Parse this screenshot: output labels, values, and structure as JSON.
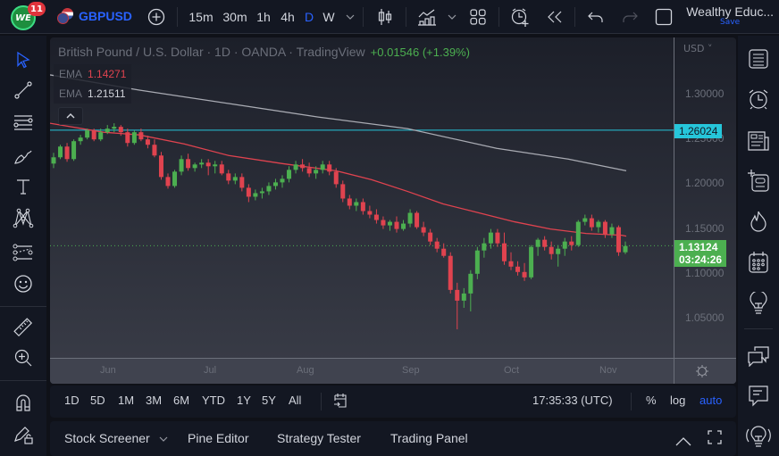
{
  "topbar": {
    "avatar_text": "WE",
    "notification_count": "11",
    "symbol": "GBPUSD",
    "intervals": [
      "15m",
      "30m",
      "1h",
      "4h",
      "D",
      "W"
    ],
    "active_interval": "D",
    "account_name": "Wealthy Educ...",
    "save_label": "Save"
  },
  "chart": {
    "title": "British Pound / U.S. Dollar · 1D · OANDA · TradingView",
    "change": "+0.01546 (+1.39%)",
    "indicators": [
      {
        "label": "EMA",
        "value": "1.14271",
        "color": "#e0434f"
      },
      {
        "label": "EMA",
        "value": "1.21511",
        "color": "#d1d4dc"
      }
    ],
    "currency": "USD",
    "price_labels": [
      "1.30000",
      "1.25000",
      "1.20000",
      "1.15000",
      "1.10000",
      "1.05000"
    ],
    "horizontal_line": {
      "value": "1.26024",
      "color": "#26c6da"
    },
    "last_price": {
      "value": "1.13124",
      "countdown": "03:24:26",
      "color": "#4caf50"
    },
    "time_labels": [
      "Jun",
      "Jul",
      "Aug",
      "Sep",
      "Oct",
      "Nov"
    ]
  },
  "chart_data": {
    "type": "candlestick",
    "title": "British Pound / U.S. Dollar · 1D · OANDA · TradingView",
    "ylabel": "USD",
    "ylim": [
      1.02,
      1.33
    ],
    "x_ticks": [
      "Jun",
      "Jul",
      "Aug",
      "Sep",
      "Oct",
      "Nov"
    ],
    "y_ticks": [
      1.05,
      1.1,
      1.15,
      1.2,
      1.25,
      1.3
    ],
    "series": [
      {
        "name": "EMA (red)",
        "value": 1.14271,
        "points": [
          [
            0,
            1.268
          ],
          [
            60,
            1.258
          ],
          [
            100,
            1.255
          ],
          [
            150,
            1.245
          ],
          [
            200,
            1.232
          ],
          [
            260,
            1.223
          ],
          [
            320,
            1.215
          ],
          [
            360,
            1.205
          ],
          [
            400,
            1.192
          ],
          [
            440,
            1.178
          ],
          [
            480,
            1.168
          ],
          [
            520,
            1.158
          ],
          [
            560,
            1.15
          ],
          [
            600,
            1.145
          ],
          [
            640,
            1.143
          ],
          [
            645,
            1.142
          ]
        ]
      },
      {
        "name": "EMA (white)",
        "value": 1.21511,
        "points": [
          [
            0,
            1.322
          ],
          [
            100,
            1.305
          ],
          [
            200,
            1.29
          ],
          [
            300,
            1.275
          ],
          [
            400,
            1.262
          ],
          [
            500,
            1.24
          ],
          [
            580,
            1.228
          ],
          [
            645,
            1.215
          ]
        ]
      }
    ],
    "horizontal_line": 1.26024,
    "last_price": 1.13124,
    "candles": [
      [
        1.223,
        1.235,
        1.218,
        1.23
      ],
      [
        1.23,
        1.244,
        1.228,
        1.242
      ],
      [
        1.242,
        1.246,
        1.225,
        1.228
      ],
      [
        1.228,
        1.25,
        1.226,
        1.248
      ],
      [
        1.248,
        1.255,
        1.244,
        1.252
      ],
      [
        1.252,
        1.262,
        1.25,
        1.26
      ],
      [
        1.26,
        1.262,
        1.248,
        1.25
      ],
      [
        1.25,
        1.262,
        1.248,
        1.258
      ],
      [
        1.258,
        1.266,
        1.256,
        1.262
      ],
      [
        1.262,
        1.268,
        1.258,
        1.264
      ],
      [
        1.264,
        1.266,
        1.254,
        1.258
      ],
      [
        1.258,
        1.262,
        1.242,
        1.246
      ],
      [
        1.246,
        1.26,
        1.244,
        1.258
      ],
      [
        1.258,
        1.262,
        1.248,
        1.25
      ],
      [
        1.25,
        1.254,
        1.24,
        1.244
      ],
      [
        1.244,
        1.25,
        1.23,
        1.232
      ],
      [
        1.232,
        1.236,
        1.205,
        1.208
      ],
      [
        1.208,
        1.212,
        1.195,
        1.198
      ],
      [
        1.198,
        1.216,
        1.196,
        1.214
      ],
      [
        1.214,
        1.232,
        1.21,
        1.228
      ],
      [
        1.228,
        1.234,
        1.215,
        1.218
      ],
      [
        1.218,
        1.224,
        1.214,
        1.222
      ],
      [
        1.222,
        1.228,
        1.218,
        1.224
      ],
      [
        1.224,
        1.228,
        1.21,
        1.22
      ],
      [
        1.22,
        1.226,
        1.212,
        1.222
      ],
      [
        1.222,
        1.226,
        1.21,
        1.212
      ],
      [
        1.212,
        1.216,
        1.2,
        1.204
      ],
      [
        1.204,
        1.212,
        1.2,
        1.208
      ],
      [
        1.208,
        1.212,
        1.192,
        1.196
      ],
      [
        1.196,
        1.2,
        1.18,
        1.186
      ],
      [
        1.186,
        1.194,
        1.182,
        1.19
      ],
      [
        1.19,
        1.196,
        1.184,
        1.192
      ],
      [
        1.192,
        1.202,
        1.188,
        1.198
      ],
      [
        1.198,
        1.206,
        1.194,
        1.202
      ],
      [
        1.202,
        1.21,
        1.196,
        1.206
      ],
      [
        1.206,
        1.22,
        1.202,
        1.216
      ],
      [
        1.216,
        1.226,
        1.212,
        1.222
      ],
      [
        1.222,
        1.228,
        1.214,
        1.218
      ],
      [
        1.218,
        1.224,
        1.208,
        1.212
      ],
      [
        1.212,
        1.22,
        1.206,
        1.216
      ],
      [
        1.216,
        1.226,
        1.212,
        1.222
      ],
      [
        1.222,
        1.226,
        1.21,
        1.214
      ],
      [
        1.214,
        1.218,
        1.196,
        1.2
      ],
      [
        1.2,
        1.204,
        1.18,
        1.184
      ],
      [
        1.184,
        1.188,
        1.172,
        1.176
      ],
      [
        1.176,
        1.184,
        1.17,
        1.18
      ],
      [
        1.18,
        1.184,
        1.166,
        1.17
      ],
      [
        1.17,
        1.176,
        1.162,
        1.166
      ],
      [
        1.166,
        1.172,
        1.156,
        1.16
      ],
      [
        1.16,
        1.164,
        1.15,
        1.154
      ],
      [
        1.154,
        1.16,
        1.148,
        1.158
      ],
      [
        1.158,
        1.164,
        1.146,
        1.15
      ],
      [
        1.15,
        1.16,
        1.148,
        1.156
      ],
      [
        1.156,
        1.172,
        1.152,
        1.168
      ],
      [
        1.168,
        1.17,
        1.15,
        1.152
      ],
      [
        1.152,
        1.158,
        1.142,
        1.146
      ],
      [
        1.146,
        1.15,
        1.132,
        1.136
      ],
      [
        1.136,
        1.14,
        1.124,
        1.128
      ],
      [
        1.128,
        1.134,
        1.118,
        1.12
      ],
      [
        1.12,
        1.124,
        1.078,
        1.082
      ],
      [
        1.082,
        1.09,
        1.038,
        1.07
      ],
      [
        1.07,
        1.084,
        1.062,
        1.078
      ],
      [
        1.078,
        1.104,
        1.058,
        1.1
      ],
      [
        1.1,
        1.13,
        1.094,
        1.126
      ],
      [
        1.126,
        1.14,
        1.118,
        1.134
      ],
      [
        1.134,
        1.15,
        1.128,
        1.146
      ],
      [
        1.146,
        1.15,
        1.13,
        1.134
      ],
      [
        1.134,
        1.146,
        1.11,
        1.114
      ],
      [
        1.114,
        1.124,
        1.104,
        1.108
      ],
      [
        1.108,
        1.114,
        1.098,
        1.102
      ],
      [
        1.102,
        1.112,
        1.092,
        1.096
      ],
      [
        1.096,
        1.132,
        1.094,
        1.13
      ],
      [
        1.13,
        1.14,
        1.12,
        1.138
      ],
      [
        1.138,
        1.142,
        1.126,
        1.13
      ],
      [
        1.13,
        1.136,
        1.116,
        1.122
      ],
      [
        1.122,
        1.132,
        1.108,
        1.128
      ],
      [
        1.128,
        1.14,
        1.12,
        1.136
      ],
      [
        1.136,
        1.142,
        1.126,
        1.132
      ],
      [
        1.132,
        1.16,
        1.13,
        1.158
      ],
      [
        1.158,
        1.166,
        1.154,
        1.162
      ],
      [
        1.162,
        1.166,
        1.148,
        1.152
      ],
      [
        1.152,
        1.16,
        1.146,
        1.158
      ],
      [
        1.158,
        1.16,
        1.14,
        1.144
      ],
      [
        1.144,
        1.156,
        1.14,
        1.152
      ],
      [
        1.152,
        1.154,
        1.12,
        1.124
      ],
      [
        1.124,
        1.136,
        1.122,
        1.131
      ]
    ]
  },
  "range_bar": {
    "ranges": [
      "1D",
      "5D",
      "1M",
      "3M",
      "6M",
      "YTD",
      "1Y",
      "5Y",
      "All"
    ],
    "clock": "17:35:33 (UTC)",
    "percent_label": "%",
    "log_label": "log",
    "auto_label": "auto"
  },
  "bottom_panel": {
    "tabs": [
      "Stock Screener",
      "Pine Editor",
      "Strategy Tester",
      "Trading Panel"
    ]
  },
  "colors": {
    "up": "#4caf50",
    "down": "#e0434f",
    "accent": "#2962ff"
  }
}
